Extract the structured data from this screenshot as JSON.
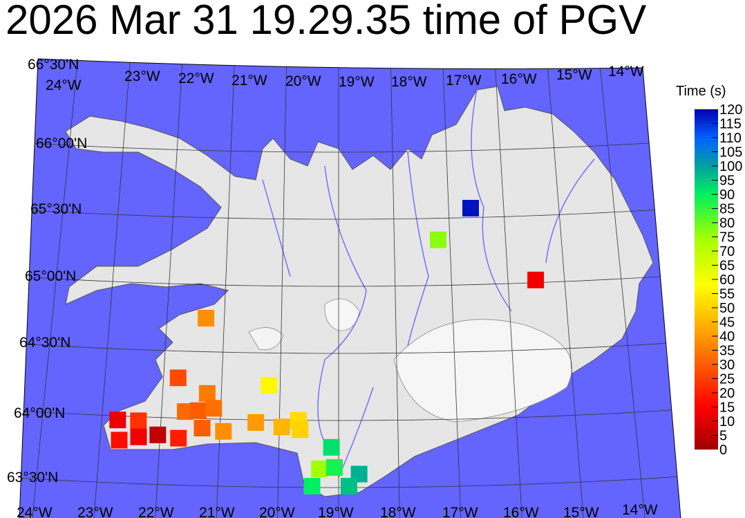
{
  "title": "2026 Mar 31 19.29.35 time of PGV",
  "map": {
    "ocean_color": "#6464ff",
    "land_color": "#e6e6e6",
    "top_labels": [
      "66°30'N",
      "24°W",
      "23°W",
      "22°W",
      "21°W",
      "20°W",
      "19°W",
      "18°W",
      "17°W",
      "16°W",
      "15°W",
      "14°W"
    ],
    "left_labels": [
      "66°00'N",
      "65°30'N",
      "65°00'N",
      "64°30'N",
      "64°00'N",
      "63°30'N"
    ],
    "bottom_labels": [
      "24°W",
      "23°W",
      "22°W",
      "21°W",
      "20°W",
      "19°W",
      "18°W",
      "17°W",
      "16°W",
      "15°W",
      "14°W"
    ],
    "parallels": [
      63.5,
      64,
      64.5,
      65,
      65.5,
      66
    ],
    "meridians": [
      -24,
      -23,
      -22,
      -21,
      -20,
      -19,
      -18,
      -17,
      -16,
      -15,
      -14
    ]
  },
  "colorbar": {
    "title": "Time (s)",
    "min": 0,
    "max": 120,
    "ticks": [
      "120",
      "115",
      "110",
      "105",
      "100",
      "95",
      "90",
      "85",
      "80",
      "75",
      "70",
      "65",
      "60",
      "55",
      "50",
      "45",
      "40",
      "35",
      "30",
      "25",
      "20",
      "15",
      "10",
      "5",
      "0"
    ],
    "colormap": [
      {
        "t": 0,
        "color": "#a00000"
      },
      {
        "t": 15,
        "color": "#ff0000"
      },
      {
        "t": 40,
        "color": "#ff9a00"
      },
      {
        "t": 58,
        "color": "#ffff00"
      },
      {
        "t": 75,
        "color": "#a0ff00"
      },
      {
        "t": 90,
        "color": "#00f060"
      },
      {
        "t": 100,
        "color": "#00a0a0"
      },
      {
        "t": 110,
        "color": "#0060ff"
      },
      {
        "t": 120,
        "color": "#0000b0"
      }
    ]
  },
  "stations": [
    {
      "lon": -16.6,
      "lat": 65.57,
      "time": 118
    },
    {
      "lon": -17.21,
      "lat": 65.34,
      "time": 77
    },
    {
      "lon": -15.51,
      "lat": 65.02,
      "time": 13
    },
    {
      "lon": -21.32,
      "lat": 64.75,
      "time": 38
    },
    {
      "lon": -21.75,
      "lat": 64.3,
      "time": 27
    },
    {
      "lon": -20.19,
      "lat": 64.26,
      "time": 57
    },
    {
      "lon": -21.24,
      "lat": 64.19,
      "time": 35
    },
    {
      "lon": -21.6,
      "lat": 64.05,
      "time": 32
    },
    {
      "lon": -21.38,
      "lat": 64.06,
      "time": 30
    },
    {
      "lon": -21.12,
      "lat": 64.08,
      "time": 33
    },
    {
      "lon": -22.73,
      "lat": 63.97,
      "time": 12
    },
    {
      "lon": -22.38,
      "lat": 63.97,
      "time": 23
    },
    {
      "lon": -20.4,
      "lat": 63.98,
      "time": 40
    },
    {
      "lon": -19.96,
      "lat": 63.95,
      "time": 45
    },
    {
      "lon": -19.68,
      "lat": 64.0,
      "time": 52
    },
    {
      "lon": -19.65,
      "lat": 63.93,
      "time": 50
    },
    {
      "lon": -21.3,
      "lat": 63.93,
      "time": 30
    },
    {
      "lon": -20.94,
      "lat": 63.91,
      "time": 38
    },
    {
      "lon": -22.68,
      "lat": 63.82,
      "time": 17
    },
    {
      "lon": -22.36,
      "lat": 63.85,
      "time": 13
    },
    {
      "lon": -22.04,
      "lat": 63.87,
      "time": 5
    },
    {
      "lon": -21.69,
      "lat": 63.85,
      "time": 20
    },
    {
      "lon": -19.12,
      "lat": 63.8,
      "time": 92
    },
    {
      "lon": -19.32,
      "lat": 63.64,
      "time": 75
    },
    {
      "lon": -19.07,
      "lat": 63.65,
      "time": 88
    },
    {
      "lon": -18.66,
      "lat": 63.6,
      "time": 98
    },
    {
      "lon": -19.44,
      "lat": 63.51,
      "time": 90
    },
    {
      "lon": -18.83,
      "lat": 63.51,
      "time": 96
    }
  ]
}
